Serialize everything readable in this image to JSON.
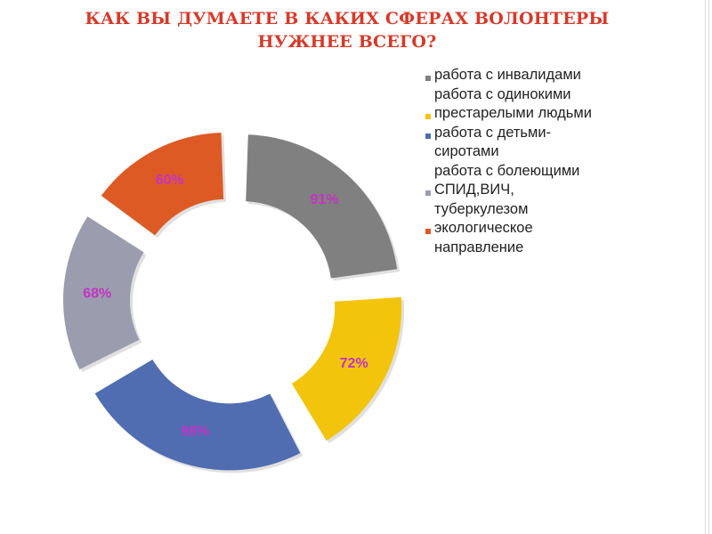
{
  "title": "КАК ВЫ ДУМАЕТЕ В КАКИХ СФЕРАХ ВОЛОНТЕРЫ НУЖНЕЕ ВСЕГО?",
  "chart_data": {
    "type": "pie",
    "style": "exploded-donut",
    "title": "КАК ВЫ ДУМАЕТЕ В КАКИХ СФЕРАХ ВОЛОНТЕРЫ НУЖНЕЕ ВСЕГО?",
    "legend_position": "right",
    "series": [
      {
        "name": "работа с инвалидами",
        "value": 91,
        "label": "91%",
        "color": "#808080"
      },
      {
        "name": "работа с одинокими престарелыми людьми",
        "value": 72,
        "label": "72%",
        "color": "#f2c40c"
      },
      {
        "name": "работа с детьми-сиротами",
        "value": 98,
        "label": "98%",
        "color": "#4f6db0"
      },
      {
        "name": "работа с болеющими СПИД,ВИЧ, туберкулезом",
        "value": 68,
        "label": "68%",
        "color": "#9b9dae"
      },
      {
        "name": "экологическое направление",
        "value": 60,
        "label": "60%",
        "color": "#dd5a24"
      }
    ]
  }
}
